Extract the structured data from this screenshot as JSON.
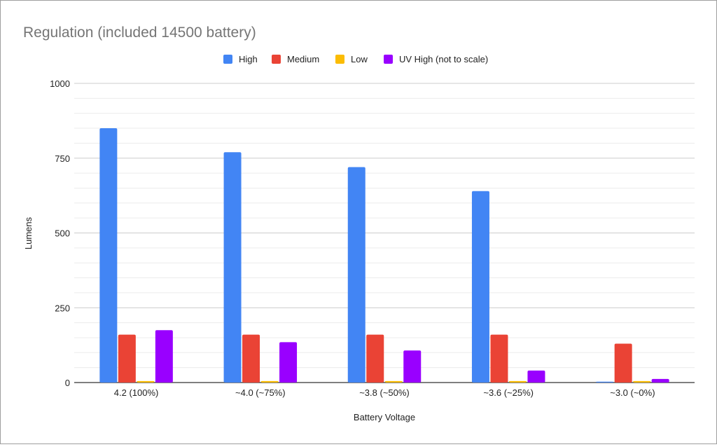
{
  "chart_data": {
    "type": "bar",
    "title": "Regulation (included 14500 battery)",
    "xlabel": "Battery Voltage",
    "ylabel": "Lumens",
    "ylim": [
      0,
      1000
    ],
    "yticks": [
      "0",
      "250",
      "500",
      "750",
      "1000"
    ],
    "ytick_values": [
      0,
      250,
      500,
      750,
      1000
    ],
    "minor_grid_step": 50,
    "grid": true,
    "legend_position": "top",
    "categories": [
      "4.2 (100%)",
      "~4.0 (~75%)",
      "~3.8 (~50%)",
      "~3.6 (~25%)",
      "~3.0 (~0%)"
    ],
    "series": [
      {
        "name": "High",
        "color": "#4285f4",
        "values": [
          850,
          770,
          720,
          640,
          3
        ]
      },
      {
        "name": "Medium",
        "color": "#ea4335",
        "values": [
          160,
          160,
          160,
          160,
          130
        ]
      },
      {
        "name": "Low",
        "color": "#fbbc04",
        "values": [
          5,
          5,
          5,
          5,
          5
        ]
      },
      {
        "name": "UV High (not to scale)",
        "color": "#9900ff",
        "values": [
          175,
          135,
          107,
          40,
          12
        ]
      }
    ]
  }
}
